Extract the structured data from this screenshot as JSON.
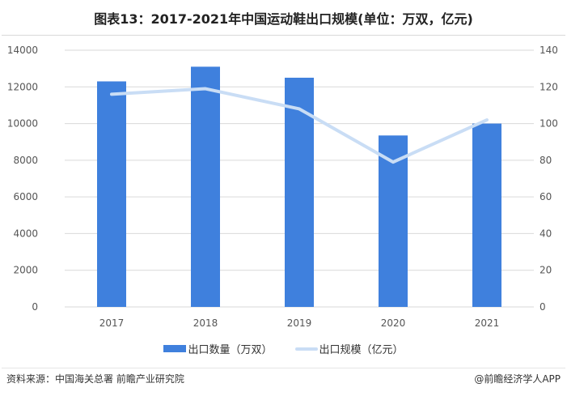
{
  "title": "图表13：2017-2021年中国运动鞋出口规模(单位：万双，亿元)",
  "legend": {
    "bar_label": "出口数量（万双）",
    "line_label": "出口规模（亿元）"
  },
  "footer": {
    "source": "资料来源：中国海关总署 前瞻产业研究院",
    "credit": "@前瞻经济学人APP"
  },
  "colors": {
    "bar": "#3f80dd",
    "line": "#c9ddf5",
    "grid": "#d9d9d9"
  },
  "chart_data": {
    "type": "bar+line",
    "title": "图表13：2017-2021年中国运动鞋出口规模(单位：万双，亿元)",
    "categories": [
      "2017",
      "2018",
      "2019",
      "2020",
      "2021"
    ],
    "series": [
      {
        "name": "出口数量（万双）",
        "type": "bar",
        "axis": "left",
        "values": [
          12300,
          13100,
          12500,
          9350,
          10000
        ]
      },
      {
        "name": "出口规模（亿元）",
        "type": "line",
        "axis": "right",
        "values": [
          116,
          119,
          108,
          79,
          102
        ]
      }
    ],
    "y_left": {
      "ylim": [
        0,
        14000
      ],
      "ticks": [
        "0",
        "2000",
        "4000",
        "6000",
        "8000",
        "10000",
        "12000",
        "14000"
      ]
    },
    "y_right": {
      "ylim": [
        0,
        140
      ],
      "ticks": [
        "0",
        "20",
        "40",
        "60",
        "80",
        "100",
        "120",
        "140"
      ]
    },
    "grid": true,
    "legend_position": "bottom"
  }
}
